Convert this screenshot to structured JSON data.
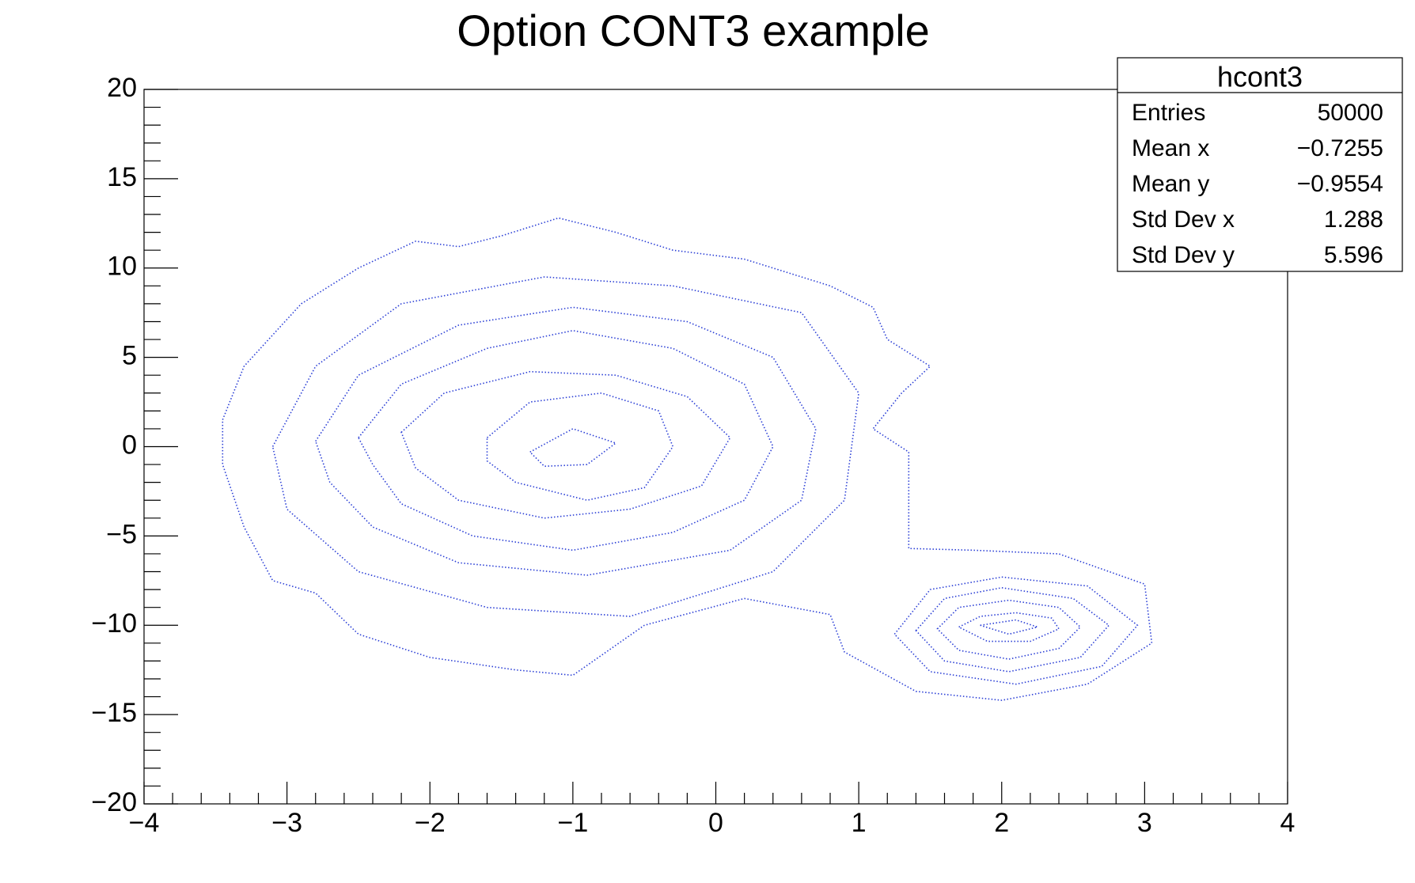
{
  "chart_data": {
    "type": "contour",
    "title": "Option CONT3 example",
    "color": "#2b3fd6",
    "xlim": [
      -4,
      4
    ],
    "ylim": [
      -20,
      20
    ],
    "xticks": [
      {
        "value": -4,
        "label": "−4"
      },
      {
        "value": -3,
        "label": "−3"
      },
      {
        "value": -2,
        "label": "−2"
      },
      {
        "value": -1,
        "label": "−1"
      },
      0,
      1,
      2,
      3,
      4
    ],
    "yticks": [
      {
        "value": -20,
        "label": "−20"
      },
      {
        "value": -15,
        "label": "−15"
      },
      {
        "value": -10,
        "label": "−10"
      },
      {
        "value": -5,
        "label": "−5"
      },
      0,
      5,
      10,
      15,
      20
    ],
    "xminorticks": [
      -3.8,
      -3.6,
      -3.4,
      -3.2,
      -2.8,
      -2.6,
      -2.4,
      -2.2,
      -1.8,
      -1.6,
      -1.4,
      -1.2,
      -0.8,
      -0.6,
      -0.4,
      -0.2,
      0.2,
      0.4,
      0.6,
      0.8,
      1.2,
      1.4,
      1.6,
      1.8,
      2.2,
      2.4,
      2.6,
      2.8,
      3.2,
      3.4,
      3.6,
      3.8
    ],
    "yminorticks": [
      -19,
      -18,
      -17,
      -16,
      -14,
      -13,
      -12,
      -11,
      -9,
      -8,
      -7,
      -6,
      -4,
      -3,
      -2,
      -1,
      1,
      2,
      3,
      4,
      6,
      7,
      8,
      9,
      11,
      12,
      13,
      14,
      16,
      17,
      18,
      19
    ],
    "series": [
      {
        "x": [
          -3.45,
          -3.3,
          -2.9,
          -2.5,
          -2.1,
          -1.8,
          -1.5,
          -1.1,
          -0.7,
          -0.3,
          0.2,
          0.8,
          1.1,
          1.2,
          1.5,
          1.3,
          1.1,
          1.35,
          1.35,
          1.8,
          2.4,
          3,
          3.05,
          2.6,
          2,
          1.4,
          0.9,
          0.8,
          0.2,
          -0.5,
          -1.0,
          -1.4,
          -2.0,
          -2.5,
          -2.8,
          -3.1,
          -3.3,
          -3.45
        ],
        "y": [
          1.5,
          4.5,
          8,
          10,
          11.5,
          11.2,
          11.8,
          12.8,
          12,
          11,
          10.5,
          9,
          7.8,
          6,
          4.5,
          3,
          1,
          -0.3,
          -5.7,
          -5.8,
          -6,
          -7.7,
          -11,
          -13.3,
          -14.2,
          -13.7,
          -11.5,
          -9.4,
          -8.5,
          -10,
          -12.8,
          -12.5,
          -11.8,
          -10.5,
          -8.2,
          -7.5,
          -4.5,
          -1
        ]
      },
      {
        "x": [
          -3.1,
          -2.8,
          -2.2,
          -1.2,
          -0.3,
          0.6,
          1.0,
          0.9,
          0.4,
          -0.6,
          -1.6,
          -2.5,
          -3
        ],
        "y": [
          0,
          4.5,
          8,
          9.5,
          9,
          7.5,
          3,
          -3,
          -7,
          -9.5,
          -9,
          -7,
          -3.5
        ]
      },
      {
        "x": [
          -2.8,
          -2.5,
          -1.8,
          -1.0,
          -0.2,
          0.4,
          0.7,
          0.6,
          0.1,
          -0.9,
          -1.8,
          -2.4,
          -2.7
        ],
        "y": [
          0.3,
          4,
          6.8,
          7.8,
          7,
          5,
          1,
          -3,
          -5.8,
          -7.2,
          -6.5,
          -4.5,
          -2
        ]
      },
      {
        "x": [
          -2.5,
          -2.2,
          -1.6,
          -1.0,
          -0.3,
          0.2,
          0.4,
          0.2,
          -0.3,
          -1.0,
          -1.7,
          -2.2,
          -2.4
        ],
        "y": [
          0.5,
          3.5,
          5.5,
          6.5,
          5.5,
          3.5,
          0,
          -3,
          -4.8,
          -5.8,
          -5,
          -3.2,
          -1
        ]
      },
      {
        "x": [
          -2.2,
          -1.9,
          -1.3,
          -0.7,
          -0.2,
          0.1,
          -0.1,
          -0.6,
          -1.2,
          -1.8,
          -2.1
        ],
        "y": [
          0.8,
          3,
          4.2,
          4,
          2.8,
          0.5,
          -2.2,
          -3.5,
          -4,
          -3,
          -1.2
        ]
      },
      {
        "x": [
          -1.6,
          -1.3,
          -0.8,
          -0.4,
          -0.3,
          -0.5,
          -0.9,
          -1.4,
          -1.6
        ],
        "y": [
          0.5,
          2.5,
          3,
          2,
          0,
          -2.3,
          -3,
          -2,
          -0.8
        ]
      },
      {
        "x": [
          -1.3,
          -1.0,
          -0.7,
          -0.9,
          -1.2
        ],
        "y": [
          -0.3,
          1,
          0.2,
          -1,
          -1.1
        ]
      },
      {
        "x": [
          1.25,
          1.5,
          2.0,
          2.6,
          2.95,
          2.7,
          2.1,
          1.5
        ],
        "y": [
          -10.5,
          -8,
          -7.3,
          -7.8,
          -10,
          -12.3,
          -13.3,
          -12.6
        ]
      },
      {
        "x": [
          1.4,
          1.6,
          2.0,
          2.5,
          2.75,
          2.55,
          2.05,
          1.6
        ],
        "y": [
          -10.3,
          -8.5,
          -7.9,
          -8.5,
          -10,
          -11.8,
          -12.6,
          -12
        ]
      },
      {
        "x": [
          1.55,
          1.7,
          2.05,
          2.4,
          2.55,
          2.4,
          2.05,
          1.7
        ],
        "y": [
          -10.2,
          -9,
          -8.6,
          -9,
          -10.1,
          -11.3,
          -11.9,
          -11.4
        ]
      },
      {
        "x": [
          1.7,
          1.85,
          2.1,
          2.35,
          2.4,
          2.2,
          1.9
        ],
        "y": [
          -10.1,
          -9.5,
          -9.3,
          -9.6,
          -10.2,
          -10.9,
          -10.9
        ]
      },
      {
        "x": [
          1.85,
          2.1,
          2.25,
          2.05
        ],
        "y": [
          -10.0,
          -9.7,
          -10.1,
          -10.5
        ]
      }
    ],
    "stats": {
      "title": "hcont3",
      "rows": [
        [
          "Entries",
          "50000"
        ],
        [
          "Mean x",
          "−0.7255"
        ],
        [
          "Mean y",
          "−0.9554"
        ],
        [
          "Std Dev x",
          "1.288"
        ],
        [
          "Std Dev y",
          "5.596"
        ]
      ]
    }
  }
}
